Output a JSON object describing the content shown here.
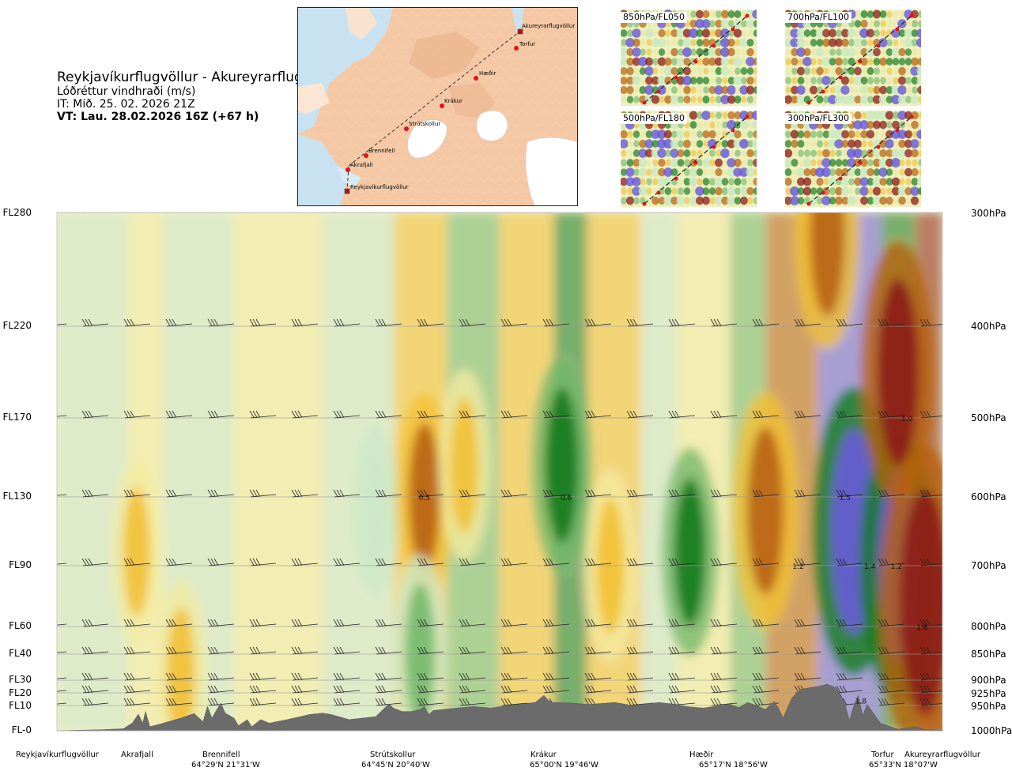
{
  "header": {
    "route": "Reykjavíkurflugvöllur - Akureyrarflugvöllur",
    "variable": "Lóðréttur vindhraði (m/s)",
    "issue_time": "IT: Mið. 25. 02. 2026 21Z",
    "valid_time": "VT: Lau. 28.02.2026 16Z (+67 h)"
  },
  "route_map": {
    "waypoints": [
      "Akureyrarflugvöllur",
      "Torfur",
      "Hæðir",
      "Krákur",
      "Strútskollur",
      "Brennifell",
      "Akrafjall",
      "Reykjavíkurflugvöllur"
    ]
  },
  "level_maps": [
    {
      "label": "850hPa/FL050"
    },
    {
      "label": "700hPa/FL100"
    },
    {
      "label": "500hPa/FL180"
    },
    {
      "label": "300hPa/FL300"
    }
  ],
  "chart_data": {
    "type": "heatmap",
    "title": "Reykjavíkurflugvöllur - Akureyrarflugvöllur",
    "subtitle": "Lóðréttur vindhraði (m/s)",
    "x_axis": "distance along route (fraction 0-1)",
    "y_axis": "pressure (hPa)",
    "ylim": [
      1000,
      300
    ],
    "flight_levels": [
      {
        "label": "FL280",
        "hpa": 300
      },
      {
        "label": "FL220",
        "hpa": 400
      },
      {
        "label": "FL170",
        "hpa": 500
      },
      {
        "label": "FL130",
        "hpa": 600
      },
      {
        "label": "FL90",
        "hpa": 700
      },
      {
        "label": "FL60",
        "hpa": 800
      },
      {
        "label": "FL40",
        "hpa": 850
      },
      {
        "label": "FL30",
        "hpa": 900
      },
      {
        "label": "FL20",
        "hpa": 925
      },
      {
        "label": "FL10",
        "hpa": 950
      },
      {
        "label": "FL-0",
        "hpa": 1000
      }
    ],
    "pressure_labels": [
      "300hPa",
      "400hPa",
      "500hPa",
      "600hPa",
      "700hPa",
      "800hPa",
      "850hPa",
      "900hPa",
      "925hPa",
      "950hPa",
      "1000hPa"
    ],
    "waypoints": [
      {
        "name": "Reykjavíkurflugvöllur",
        "coord": "",
        "pos": 0.0
      },
      {
        "name": "Akrafjall",
        "coord": "",
        "pos": 0.09
      },
      {
        "name": "Brennifell",
        "coord": "64°29'N 21°31'W",
        "pos": 0.185
      },
      {
        "name": "Strútskollur",
        "coord": "64°45'N 20°40'W",
        "pos": 0.378
      },
      {
        "name": "Krákur",
        "coord": "65°00'N 19°46'W",
        "pos": 0.57
      },
      {
        "name": "Hæðir",
        "coord": "65°17'N 18°56'W",
        "pos": 0.75
      },
      {
        "name": "Torfur",
        "coord": "65°33'N 18°07'W",
        "pos": 0.94
      },
      {
        "name": "Akureyrarflugvöllur",
        "coord": "",
        "pos": 1.0
      }
    ],
    "value_labels": [
      {
        "text": "0.5",
        "pos": 0.415,
        "hpa": 600
      },
      {
        "text": "0.6",
        "pos": 0.575,
        "hpa": 600
      },
      {
        "text": "1.5",
        "pos": 0.89,
        "hpa": 600
      },
      {
        "text": "1.2",
        "pos": 0.837,
        "hpa": 700
      },
      {
        "text": "1.4",
        "pos": 0.918,
        "hpa": 700
      },
      {
        "text": "1.2",
        "pos": 0.948,
        "hpa": 700
      },
      {
        "text": "1.0",
        "pos": 0.96,
        "hpa": 500
      },
      {
        "text": "1.8",
        "pos": 0.977,
        "hpa": 800
      },
      {
        "text": "1.8",
        "pos": 0.908,
        "hpa": 940
      }
    ],
    "terrain_profile": [
      [
        0,
        1000
      ],
      [
        0.02,
        999
      ],
      [
        0.05,
        998
      ],
      [
        0.075,
        996
      ],
      [
        0.085,
        985
      ],
      [
        0.092,
        967
      ],
      [
        0.097,
        985
      ],
      [
        0.1,
        962
      ],
      [
        0.105,
        992
      ],
      [
        0.12,
        985
      ],
      [
        0.14,
        975
      ],
      [
        0.155,
        966
      ],
      [
        0.165,
        982
      ],
      [
        0.17,
        952
      ],
      [
        0.175,
        975
      ],
      [
        0.18,
        960
      ],
      [
        0.185,
        945
      ],
      [
        0.19,
        965
      ],
      [
        0.2,
        975
      ],
      [
        0.205,
        990
      ],
      [
        0.215,
        978
      ],
      [
        0.22,
        992
      ],
      [
        0.23,
        978
      ],
      [
        0.24,
        985
      ],
      [
        0.26,
        978
      ],
      [
        0.285,
        968
      ],
      [
        0.3,
        965
      ],
      [
        0.31,
        968
      ],
      [
        0.33,
        978
      ],
      [
        0.36,
        972
      ],
      [
        0.37,
        955
      ],
      [
        0.375,
        947
      ],
      [
        0.38,
        955
      ],
      [
        0.39,
        962
      ],
      [
        0.4,
        962
      ],
      [
        0.41,
        958
      ],
      [
        0.415,
        952
      ],
      [
        0.42,
        968
      ],
      [
        0.425,
        960
      ],
      [
        0.44,
        957
      ],
      [
        0.47,
        952
      ],
      [
        0.49,
        955
      ],
      [
        0.51,
        950
      ],
      [
        0.54,
        944
      ],
      [
        0.55,
        930
      ],
      [
        0.555,
        940
      ],
      [
        0.56,
        944
      ],
      [
        0.58,
        945
      ],
      [
        0.6,
        948
      ],
      [
        0.63,
        944
      ],
      [
        0.65,
        950
      ],
      [
        0.68,
        944
      ],
      [
        0.7,
        948
      ],
      [
        0.71,
        952
      ],
      [
        0.73,
        955
      ],
      [
        0.75,
        950
      ],
      [
        0.76,
        947
      ],
      [
        0.77,
        954
      ],
      [
        0.78,
        944
      ],
      [
        0.79,
        950
      ],
      [
        0.8,
        958
      ],
      [
        0.81,
        942
      ],
      [
        0.815,
        956
      ],
      [
        0.82,
        975
      ],
      [
        0.83,
        935
      ],
      [
        0.84,
        918
      ],
      [
        0.86,
        912
      ],
      [
        0.87,
        908
      ],
      [
        0.88,
        915
      ],
      [
        0.885,
        928
      ],
      [
        0.89,
        948
      ],
      [
        0.895,
        980
      ],
      [
        0.9,
        950
      ],
      [
        0.905,
        930
      ],
      [
        0.91,
        970
      ],
      [
        0.915,
        948
      ],
      [
        0.92,
        960
      ],
      [
        0.93,
        985
      ],
      [
        0.95,
        997
      ],
      [
        0.97,
        992
      ],
      [
        0.98,
        998
      ],
      [
        1.0,
        999
      ]
    ],
    "vertical_velocity_field": {
      "units": "m/s",
      "cells": [
        {
          "pos": 0.09,
          "hpa": 680,
          "w": 0.3
        },
        {
          "pos": 0.14,
          "hpa": 890,
          "w": 0.4
        },
        {
          "pos": 0.36,
          "hpa": 620,
          "w": -0.2
        },
        {
          "pos": 0.415,
          "hpa": 600,
          "w": 0.6
        },
        {
          "pos": 0.41,
          "hpa": 850,
          "w": -0.5
        },
        {
          "pos": 0.46,
          "hpa": 560,
          "w": 0.4
        },
        {
          "pos": 0.57,
          "hpa": 560,
          "w": -0.7
        },
        {
          "pos": 0.625,
          "hpa": 700,
          "w": 0.4
        },
        {
          "pos": 0.715,
          "hpa": 680,
          "w": -0.6
        },
        {
          "pos": 0.8,
          "hpa": 620,
          "w": 0.9
        },
        {
          "pos": 0.87,
          "hpa": 320,
          "w": 0.8
        },
        {
          "pos": 0.9,
          "hpa": 650,
          "w": -1.5
        },
        {
          "pos": 0.95,
          "hpa": 700,
          "w": -1.3
        },
        {
          "pos": 0.95,
          "hpa": 450,
          "w": 1.2
        },
        {
          "pos": 0.98,
          "hpa": 760,
          "w": 1.8
        }
      ]
    }
  },
  "colors": {
    "up_strong": "#8c1d18",
    "up_mid": "#b8620f",
    "up_light": "#f2c033",
    "up_faint": "#f3eba0",
    "down_faint": "#cde8c8",
    "down_mid": "#74b86a",
    "down_strong": "#137a1c",
    "down_very": "#6a5bd9",
    "terrain": "#6b6b6b"
  }
}
